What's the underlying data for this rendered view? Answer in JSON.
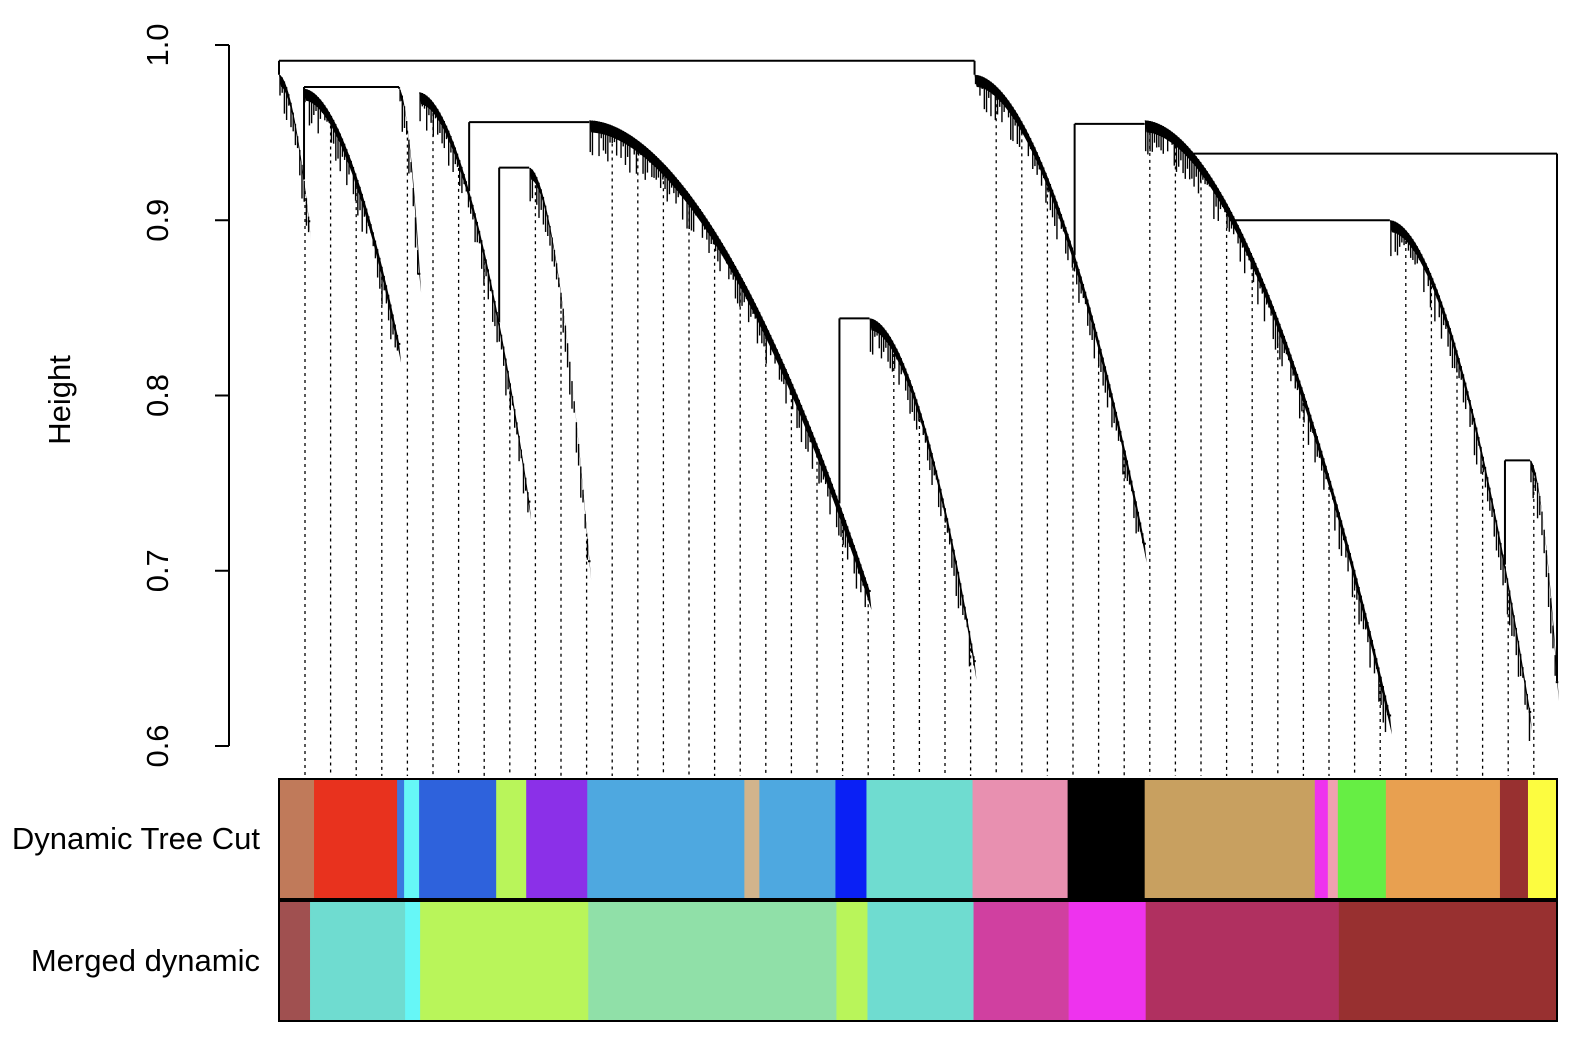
{
  "chart_data": {
    "type": "dendrogram",
    "y_label": "Height",
    "ylim": [
      0.6,
      1.0
    ],
    "yticks": [
      0.6,
      0.7,
      0.8,
      0.9,
      {
        "value": 1,
        "label": "1.0"
      }
    ],
    "xlim": [
      0,
      1277
    ],
    "clusters": [
      {
        "start": 0,
        "end": 30,
        "top": 0.983,
        "bottom": 0.9
      },
      {
        "start": 25,
        "end": 120,
        "top": 0.975,
        "bottom": 0.83
      },
      {
        "start": 120,
        "end": 140,
        "top": 0.975,
        "bottom": 0.87
      },
      {
        "start": 140,
        "end": 250,
        "top": 0.973,
        "bottom": 0.74
      },
      {
        "start": 250,
        "end": 310,
        "top": 0.93,
        "bottom": 0.706
      },
      {
        "start": 310,
        "end": 590,
        "top": 0.957,
        "bottom": 0.689
      },
      {
        "start": 590,
        "end": 695,
        "top": 0.844,
        "bottom": 0.649
      },
      {
        "start": 695,
        "end": 865,
        "top": 0.983,
        "bottom": 0.716
      },
      {
        "start": 865,
        "end": 1110,
        "top": 0.957,
        "bottom": 0.618
      },
      {
        "start": 1110,
        "end": 1250,
        "top": 0.9,
        "bottom": 0.62
      },
      {
        "start": 1250,
        "end": 1277,
        "top": 0.763,
        "bottom": 0.637
      }
    ],
    "merges": [
      {
        "height": 0.991,
        "x1": 0,
        "x2": 695
      },
      {
        "height": 0.976,
        "x1": 25,
        "x2": 120
      },
      {
        "height": 0.956,
        "x1": 190,
        "x2": 310
      },
      {
        "height": 0.93,
        "x1": 220,
        "x2": 250
      },
      {
        "height": 0.844,
        "x1": 560,
        "x2": 590
      },
      {
        "height": 0.955,
        "x1": 795,
        "x2": 865
      },
      {
        "height": 0.938,
        "x1": 905,
        "x2": 1277
      },
      {
        "height": 0.9,
        "x1": 950,
        "x2": 1110
      },
      {
        "height": 0.763,
        "x1": 1225,
        "x2": 1250
      }
    ],
    "color_rows": [
      {
        "name": "Dynamic Tree Cut",
        "segments": [
          {
            "color": "#c07a5a",
            "size": 35
          },
          {
            "color": "#e8321e",
            "size": 83
          },
          {
            "color": "#3a78e0",
            "size": 7
          },
          {
            "color": "#66f7f7",
            "size": 15
          },
          {
            "color": "#2e62dc",
            "size": 77
          },
          {
            "color": "#b9f55a",
            "size": 30
          },
          {
            "color": "#8b30e8",
            "size": 61
          },
          {
            "color": "#4ea8e0",
            "size": 157
          },
          {
            "color": "#d2b48c",
            "size": 15
          },
          {
            "color": "#4ea8e0",
            "size": 76
          },
          {
            "color": "#0a20f5",
            "size": 31
          },
          {
            "color": "#6fdcd0",
            "size": 106
          },
          {
            "color": "#e890b0",
            "size": 95
          },
          {
            "color": "#000000",
            "size": 77
          },
          {
            "color": "#c8a060",
            "size": 170
          },
          {
            "color": "#ee33ee",
            "size": 13
          },
          {
            "color": "#f0a0b0",
            "size": 10
          },
          {
            "color": "#66ee44",
            "size": 48
          },
          {
            "color": "#e8a050",
            "size": 114
          },
          {
            "color": "#983030",
            "size": 28
          },
          {
            "color": "#fcfc40",
            "size": 29
          }
        ]
      },
      {
        "name": "Merged dynamic",
        "segments": [
          {
            "color": "#a05050",
            "size": 31
          },
          {
            "color": "#6fdcd0",
            "size": 95
          },
          {
            "color": "#66f7f7",
            "size": 15
          },
          {
            "color": "#b9f55a",
            "size": 168
          },
          {
            "color": "#90e0a8",
            "size": 248
          },
          {
            "color": "#b9f55a",
            "size": 31
          },
          {
            "color": "#6fdcd0",
            "size": 106
          },
          {
            "color": "#d040a0",
            "size": 95
          },
          {
            "color": "#ee33ee",
            "size": 77
          },
          {
            "color": "#b03060",
            "size": 193
          },
          {
            "color": "#983030",
            "size": 218
          }
        ]
      }
    ]
  }
}
